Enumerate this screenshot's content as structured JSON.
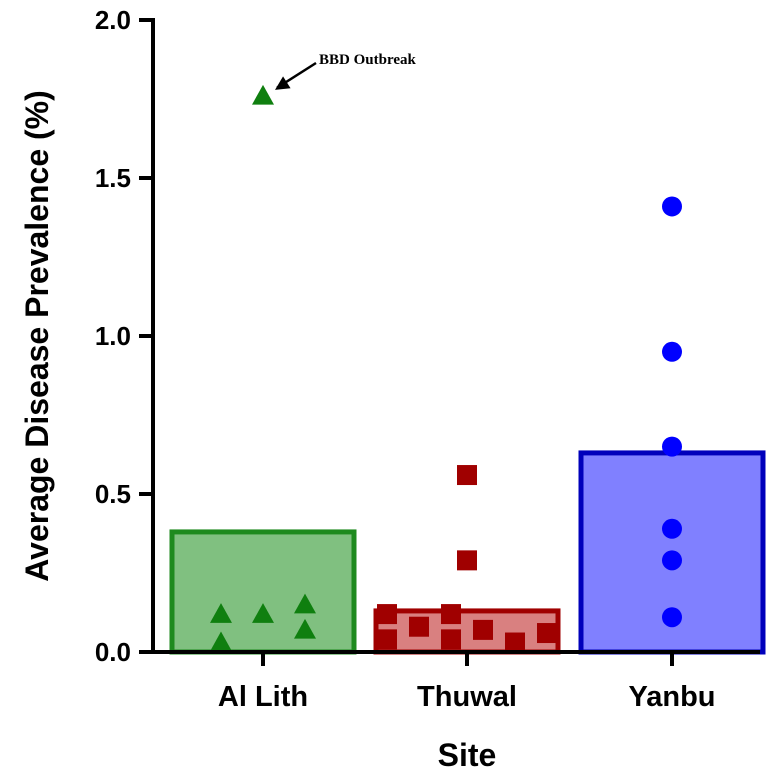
{
  "chart_data": {
    "type": "bar",
    "xlabel": "Site",
    "ylabel": "Average Disease Prevalence  (%)",
    "ylim": [
      0,
      2.0
    ],
    "yticks": [
      "0.0",
      "0.5",
      "1.0",
      "1.5",
      "2.0"
    ],
    "yticks_values": [
      0,
      0.5,
      1.0,
      1.5,
      2.0
    ],
    "categories": [
      "Al Lith",
      "Thuwal",
      "Yanbu"
    ],
    "grid": false,
    "series": [
      {
        "category": "Al Lith",
        "mean": 0.38,
        "marker": "triangle",
        "bar_fill": "#80c080",
        "bar_stroke": "#1e8a1e",
        "point_color": "#0f7f0f",
        "points": [
          1.76,
          0.12,
          0.03,
          0.12,
          0.15,
          0.07
        ]
      },
      {
        "category": "Thuwal",
        "mean": 0.13,
        "marker": "square",
        "bar_fill": "#d98080",
        "bar_stroke": "#a00000",
        "point_color": "#a00000",
        "points": [
          0.56,
          0.29,
          0.12,
          0.04,
          0.08,
          0.12,
          0.04,
          0.07,
          0.03,
          0.06
        ]
      },
      {
        "category": "Yanbu",
        "mean": 0.63,
        "marker": "circle",
        "bar_fill": "#8080ff",
        "bar_stroke": "#0000bb",
        "point_color": "#0000ff",
        "points": [
          1.41,
          0.95,
          0.65,
          0.39,
          0.29,
          0.11
        ]
      }
    ],
    "annotations": [
      {
        "text": "BBD Outbreak",
        "target_category": "Al Lith",
        "target_value": 1.76
      }
    ]
  }
}
